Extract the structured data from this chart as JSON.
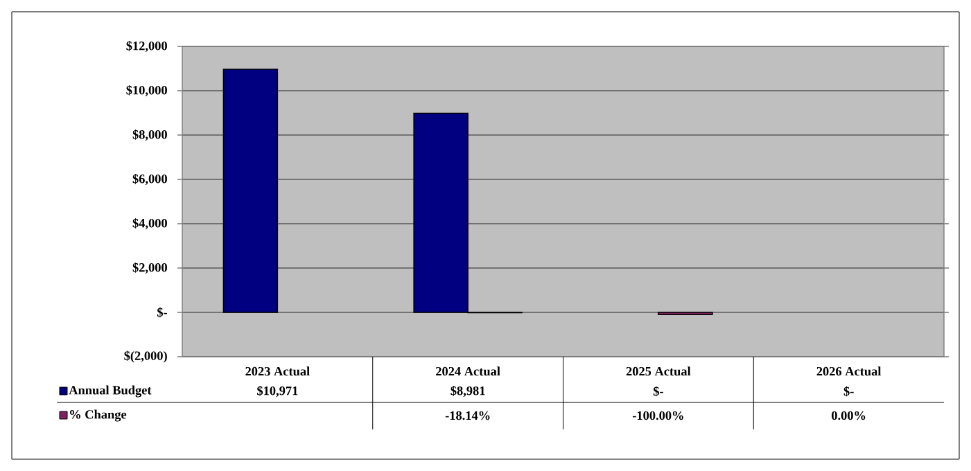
{
  "chart_data": {
    "type": "bar",
    "categories": [
      "2023 Actual",
      "2024 Actual",
      "2025 Actual",
      "2026 Actual"
    ],
    "series": [
      {
        "name": "Annual Budget",
        "color": "#000080",
        "values": [
          10971,
          8981,
          0,
          0
        ],
        "value_labels": [
          "$10,971",
          "$8,981",
          "$-",
          "$-"
        ]
      },
      {
        "name": "% Change",
        "color": "#7f2060",
        "values": [
          null,
          -18.14,
          -100,
          0
        ],
        "value_labels": [
          null,
          "-18.14%",
          "-100.00%",
          "0.00%"
        ]
      }
    ],
    "ylim": [
      -2000,
      12000
    ],
    "yticks": [
      {
        "value": -2000,
        "label": "$(2,000)"
      },
      {
        "value": 0,
        "label": "$-"
      },
      {
        "value": 2000,
        "label": "$2,000"
      },
      {
        "value": 4000,
        "label": "$4,000"
      },
      {
        "value": 6000,
        "label": "$6,000"
      },
      {
        "value": 8000,
        "label": "$8,000"
      },
      {
        "value": 10000,
        "label": "$10,000"
      },
      {
        "value": 12000,
        "label": "$12,000"
      }
    ],
    "grid": "y",
    "legend": "bottom"
  }
}
